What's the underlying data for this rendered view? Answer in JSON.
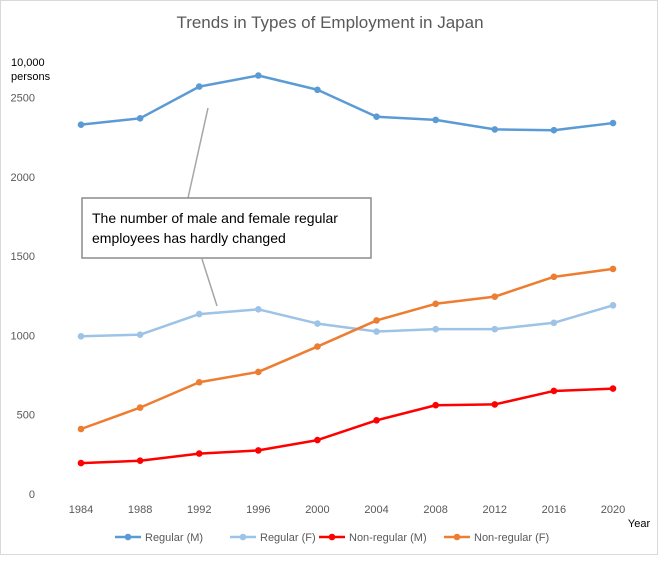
{
  "chart_data": {
    "type": "line",
    "title": "Trends in Types of Employment in Japan",
    "ylabel_line1": "10,000",
    "ylabel_line2": "persons",
    "xlabel": "Year",
    "x": [
      "1984",
      "1988",
      "1992",
      "1996",
      "2000",
      "2004",
      "2008",
      "2012",
      "2016",
      "2020"
    ],
    "ylim": [
      0,
      2800
    ],
    "yticks": [
      0,
      500,
      1000,
      1500,
      2000,
      2500
    ],
    "grid": "none",
    "legend_position": "bottom",
    "series": [
      {
        "name": "Regular (M)",
        "color": "#5b9bd5",
        "values": [
          2330,
          2370,
          2570,
          2640,
          2550,
          2380,
          2360,
          2300,
          2295,
          2340
        ]
      },
      {
        "name": "Regular (F)",
        "color": "#9dc3e6",
        "values": [
          995,
          1005,
          1135,
          1165,
          1075,
          1025,
          1040,
          1040,
          1080,
          1190
        ]
      },
      {
        "name": "Non-regular (M)",
        "color": "#ff0000",
        "values": [
          195,
          210,
          255,
          275,
          340,
          465,
          560,
          565,
          650,
          665
        ]
      },
      {
        "name": "Non-regular (F)",
        "color": "#ed7d31",
        "values": [
          410,
          545,
          705,
          770,
          930,
          1095,
          1200,
          1245,
          1370,
          1420
        ]
      }
    ],
    "annotation": {
      "line1": "The number of male and female regular",
      "line2": "employees has hardly changed"
    }
  }
}
